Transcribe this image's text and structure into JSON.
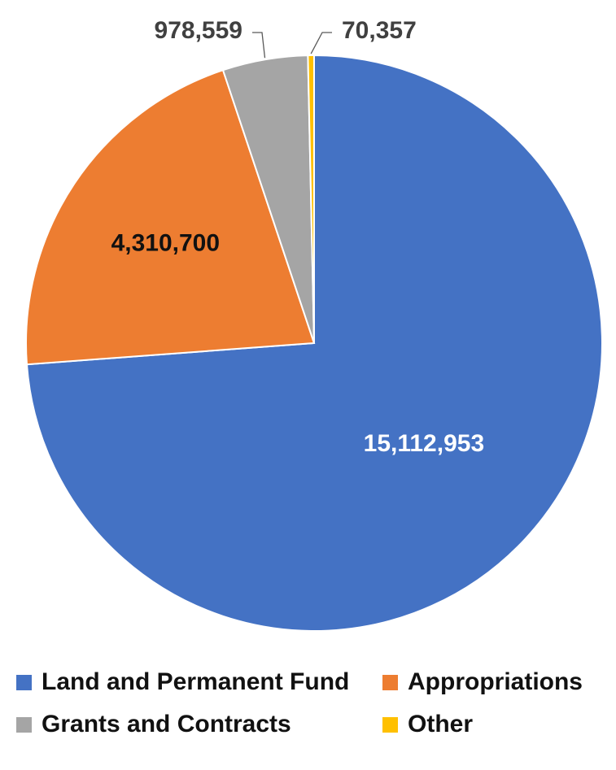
{
  "chart_data": {
    "type": "pie",
    "title": "",
    "slices": [
      {
        "label": "Land and Permanent Fund",
        "value": 15112953,
        "value_label": "15,112,953",
        "color": "#4472C4",
        "label_color": "#FFFFFF"
      },
      {
        "label": "Appropriations",
        "value": 4310700,
        "value_label": "4,310,700",
        "color": "#ED7D31",
        "label_color": "#111111"
      },
      {
        "label": "Grants and Contracts",
        "value": 978559,
        "value_label": "978,559",
        "color": "#A5A5A5",
        "label_color": "#404040"
      },
      {
        "label": "Other",
        "value": 70357,
        "value_label": "70,357",
        "color": "#FFC000",
        "label_color": "#404040"
      }
    ],
    "start_angle_deg": 0,
    "direction": "clockwise",
    "legend_position": "bottom"
  }
}
